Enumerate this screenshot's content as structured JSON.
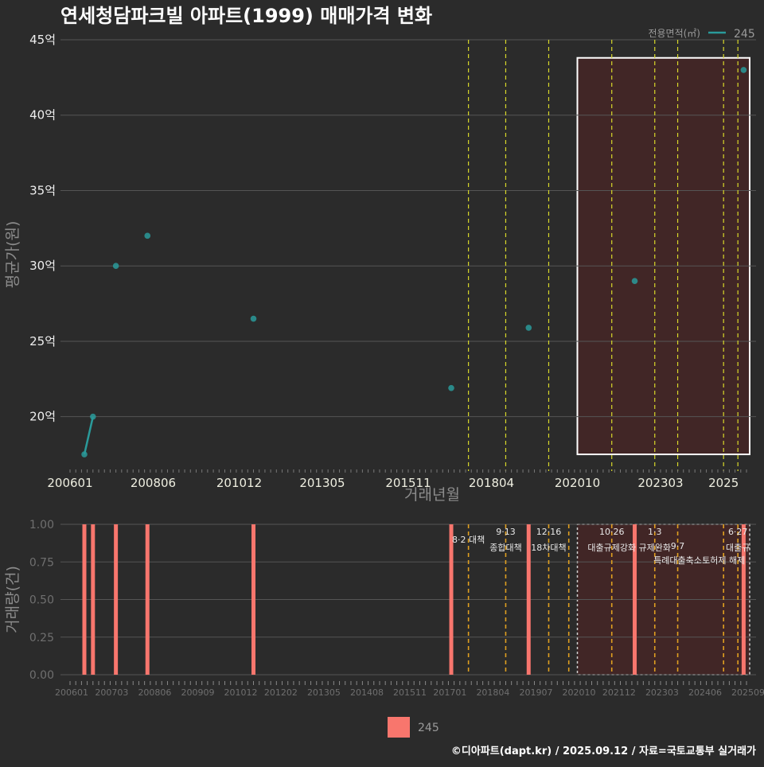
{
  "title": "연세청담파크빌 아파트(1999) 매매가격 변화",
  "footer": "©디아파트(dapt.kr) / 2025.09.12 / 자료=국토교통부 실거래가",
  "chart_data": [
    {
      "type": "line",
      "name": "price",
      "ylabel": "평균가(원)",
      "xlabel": "거래년월",
      "ylim": [
        16.5,
        45
      ],
      "yticks": [
        {
          "v": 20,
          "label": "20억"
        },
        {
          "v": 25,
          "label": "25억"
        },
        {
          "v": 30,
          "label": "30억"
        },
        {
          "v": 35,
          "label": "35억"
        },
        {
          "v": 40,
          "label": "40억"
        },
        {
          "v": 45,
          "label": "45억"
        }
      ],
      "xticks": [
        "200601",
        "200806",
        "201012",
        "201305",
        "201511",
        "201804",
        "202010",
        "202303",
        "2025"
      ],
      "legend": {
        "title": "전용면적(㎡)",
        "label": "245",
        "color": "#2a9a9a",
        "position": "top-right"
      },
      "series": [
        {
          "name": "245",
          "points": [
            {
              "x": "2006-06",
              "y": 17.5
            },
            {
              "x": "2006-09",
              "y": 20.0
            },
            {
              "x": "2007-05",
              "y": 30.0
            },
            {
              "x": "2008-04",
              "y": 32.0
            },
            {
              "x": "2011-05",
              "y": 26.5
            },
            {
              "x": "2017-02",
              "y": 21.9
            },
            {
              "x": "2019-05",
              "y": 25.9
            },
            {
              "x": "2022-06",
              "y": 29.0
            },
            {
              "x": "2025-08",
              "y": 43.0
            }
          ]
        }
      ],
      "policy_dates": [
        "2017-08",
        "2018-09",
        "2019-12",
        "2021-10",
        "2023-01",
        "2023-09",
        "2025-01",
        "2025-06"
      ],
      "highlight_range": {
        "x0": "2020-10",
        "x1": "2025-09",
        "y0": 17.5,
        "y1": 43.8
      }
    },
    {
      "type": "bar",
      "name": "volume",
      "ylabel": "거래량(건)",
      "ylim": [
        0,
        1
      ],
      "yticks": [
        {
          "v": 0,
          "label": "0.00"
        },
        {
          "v": 0.25,
          "label": "0.25"
        },
        {
          "v": 0.5,
          "label": "0.50"
        },
        {
          "v": 0.75,
          "label": "0.75"
        },
        {
          "v": 1,
          "label": "1.00"
        }
      ],
      "xticks": [
        "200601",
        "200703",
        "200806",
        "200909",
        "201012",
        "201202",
        "201305",
        "201408",
        "201511",
        "201701",
        "201804",
        "201907",
        "202010",
        "202112",
        "202303",
        "202406",
        "202509"
      ],
      "legend": {
        "label": "245",
        "color": "#f8766d"
      },
      "bars": [
        {
          "x": "2006-06",
          "value": 1
        },
        {
          "x": "2006-09",
          "value": 1
        },
        {
          "x": "2007-05",
          "value": 1
        },
        {
          "x": "2008-04",
          "value": 1
        },
        {
          "x": "2011-05",
          "value": 1
        },
        {
          "x": "2017-02",
          "value": 1
        },
        {
          "x": "2019-05",
          "value": 1
        },
        {
          "x": "2022-06",
          "value": 1
        },
        {
          "x": "2025-08",
          "value": 1
        }
      ],
      "policies": [
        {
          "date": "2017-08",
          "lines": [
            "8·2 대책"
          ]
        },
        {
          "date": "2018-09",
          "lines": [
            "9·13",
            "종합대책"
          ]
        },
        {
          "date": "2019-12",
          "lines": [
            "12·16",
            "18차대책"
          ]
        },
        {
          "date": "2020-07",
          "lines": []
        },
        {
          "date": "2021-10",
          "lines": [
            "10·26",
            "대출규제강화"
          ]
        },
        {
          "date": "2023-01",
          "lines": [
            "1·3",
            "규제완화"
          ]
        },
        {
          "date": "2023-09",
          "lines": [
            "9·7",
            "특례대출축소"
          ]
        },
        {
          "date": "2025-01",
          "lines": [
            "토허제 해제"
          ]
        },
        {
          "date": "2025-06",
          "lines": [
            "6·27",
            "대출규"
          ]
        }
      ],
      "highlight_range": {
        "x0": "2020-10",
        "x1": "2025-09",
        "y0": 0,
        "y1": 1
      }
    }
  ]
}
